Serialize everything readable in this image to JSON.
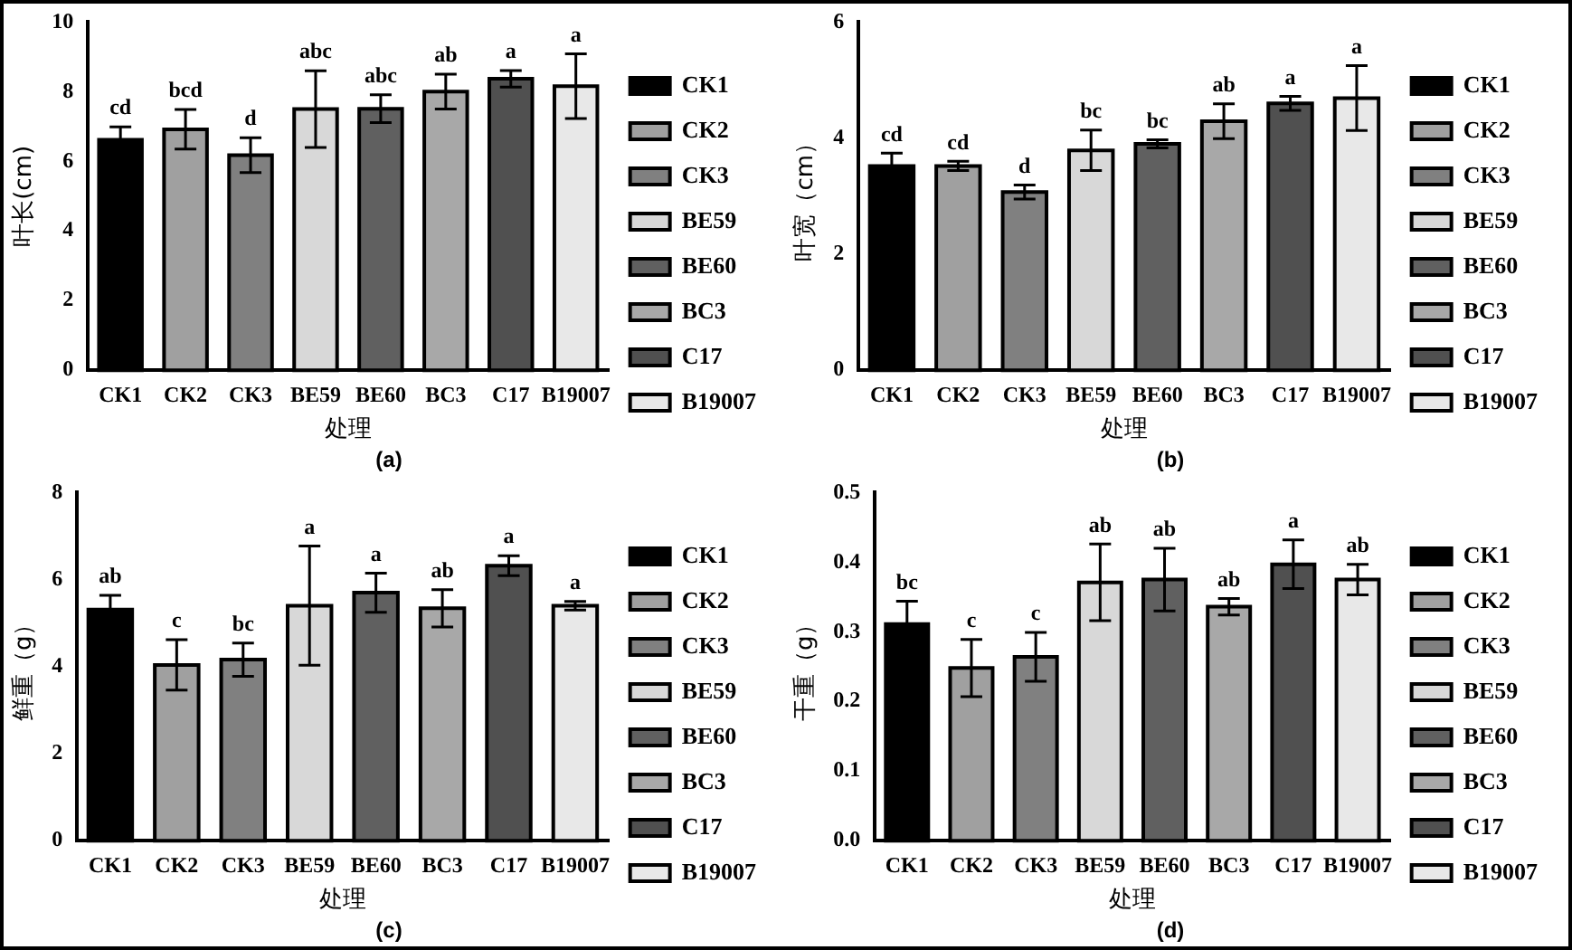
{
  "chart_data": [
    {
      "type": "bar",
      "title": "(a)",
      "xlabel": "处理",
      "ylabel": "叶长(cm)",
      "categories": [
        "CK1",
        "CK2",
        "CK3",
        "BE59",
        "BE60",
        "BC3",
        "C17",
        "B19007"
      ],
      "series": [
        {
          "name": "CK1",
          "color": "#000000",
          "values": [
            6.62,
            null,
            null,
            null,
            null,
            null,
            null,
            null
          ],
          "errors": [
            0.37,
            null,
            null,
            null,
            null,
            null,
            null,
            null
          ],
          "value_labels": [
            "cd",
            null,
            null,
            null,
            null,
            null,
            null,
            null
          ]
        },
        {
          "name": "CK2",
          "color": "#a0a0a0",
          "values": [
            null,
            6.92,
            null,
            null,
            null,
            null,
            null,
            null
          ],
          "errors": [
            null,
            0.57,
            null,
            null,
            null,
            null,
            null,
            null
          ],
          "value_labels": [
            null,
            "bcd",
            null,
            null,
            null,
            null,
            null,
            null
          ]
        },
        {
          "name": "CK3",
          "color": "#808080",
          "values": [
            null,
            null,
            6.18,
            null,
            null,
            null,
            null,
            null
          ],
          "errors": [
            null,
            null,
            0.5,
            null,
            null,
            null,
            null,
            null
          ],
          "value_labels": [
            null,
            null,
            "d",
            null,
            null,
            null,
            null,
            null
          ]
        },
        {
          "name": "BE59",
          "color": "#d8d8d8",
          "values": [
            null,
            null,
            null,
            7.5,
            null,
            null,
            null,
            null
          ],
          "errors": [
            null,
            null,
            null,
            1.1,
            null,
            null,
            null,
            null
          ],
          "value_labels": [
            null,
            null,
            null,
            "abc",
            null,
            null,
            null,
            null
          ]
        },
        {
          "name": "BE60",
          "color": "#606060",
          "values": [
            null,
            null,
            null,
            null,
            7.51,
            null,
            null,
            null
          ],
          "errors": [
            null,
            null,
            null,
            null,
            0.4,
            null,
            null,
            null
          ],
          "value_labels": [
            null,
            null,
            null,
            null,
            "abc",
            null,
            null,
            null
          ]
        },
        {
          "name": "BC3",
          "color": "#a8a8a8",
          "values": [
            null,
            null,
            null,
            null,
            null,
            8.0,
            null,
            null
          ],
          "errors": [
            null,
            null,
            null,
            null,
            null,
            0.5,
            null,
            null
          ],
          "value_labels": [
            null,
            null,
            null,
            null,
            null,
            "ab",
            null,
            null
          ]
        },
        {
          "name": "C17",
          "color": "#505050",
          "values": [
            null,
            null,
            null,
            null,
            null,
            null,
            8.37,
            null
          ],
          "errors": [
            null,
            null,
            null,
            null,
            null,
            null,
            0.24,
            null
          ],
          "value_labels": [
            null,
            null,
            null,
            null,
            null,
            null,
            "a",
            null
          ]
        },
        {
          "name": "B19007",
          "color": "#e8e8e8",
          "values": [
            null,
            null,
            null,
            null,
            null,
            null,
            null,
            8.16
          ],
          "errors": [
            null,
            null,
            null,
            null,
            null,
            null,
            null,
            0.93
          ],
          "value_labels": [
            null,
            null,
            null,
            null,
            null,
            null,
            null,
            "a"
          ]
        }
      ],
      "ylim": [
        0,
        10
      ],
      "yticks": [
        0,
        2,
        4,
        6,
        8,
        10
      ],
      "legend": "right"
    },
    {
      "type": "bar",
      "title": "(b)",
      "xlabel": "处理",
      "ylabel": "叶宽（cm）",
      "categories": [
        "CK1",
        "CK2",
        "CK3",
        "BE59",
        "BE60",
        "BC3",
        "C17",
        "B19007"
      ],
      "series": [
        {
          "name": "CK1",
          "color": "#000000",
          "values": [
            3.52,
            null,
            null,
            null,
            null,
            null,
            null,
            null
          ],
          "errors": [
            0.22,
            null,
            null,
            null,
            null,
            null,
            null,
            null
          ],
          "value_labels": [
            "cd",
            null,
            null,
            null,
            null,
            null,
            null,
            null
          ]
        },
        {
          "name": "CK2",
          "color": "#a0a0a0",
          "values": [
            null,
            3.52,
            null,
            null,
            null,
            null,
            null,
            null
          ],
          "errors": [
            null,
            0.08,
            null,
            null,
            null,
            null,
            null,
            null
          ],
          "value_labels": [
            null,
            "cd",
            null,
            null,
            null,
            null,
            null,
            null
          ]
        },
        {
          "name": "CK3",
          "color": "#808080",
          "values": [
            null,
            null,
            3.07,
            null,
            null,
            null,
            null,
            null
          ],
          "errors": [
            null,
            null,
            0.12,
            null,
            null,
            null,
            null,
            null
          ],
          "value_labels": [
            null,
            null,
            "d",
            null,
            null,
            null,
            null,
            null
          ]
        },
        {
          "name": "BE59",
          "color": "#d8d8d8",
          "values": [
            null,
            null,
            null,
            3.79,
            null,
            null,
            null,
            null
          ],
          "errors": [
            null,
            null,
            null,
            0.35,
            null,
            null,
            null,
            null
          ],
          "value_labels": [
            null,
            null,
            null,
            "bc",
            null,
            null,
            null,
            null
          ]
        },
        {
          "name": "BE60",
          "color": "#606060",
          "values": [
            null,
            null,
            null,
            null,
            3.9,
            null,
            null,
            null
          ],
          "errors": [
            null,
            null,
            null,
            null,
            0.07,
            null,
            null,
            null
          ],
          "value_labels": [
            null,
            null,
            null,
            null,
            "bc",
            null,
            null,
            null
          ]
        },
        {
          "name": "BC3",
          "color": "#a8a8a8",
          "values": [
            null,
            null,
            null,
            null,
            null,
            4.29,
            null,
            null
          ],
          "errors": [
            null,
            null,
            null,
            null,
            null,
            0.3,
            null,
            null
          ],
          "value_labels": [
            null,
            null,
            null,
            null,
            null,
            "ab",
            null,
            null
          ]
        },
        {
          "name": "C17",
          "color": "#505050",
          "values": [
            null,
            null,
            null,
            null,
            null,
            null,
            4.6,
            null
          ],
          "errors": [
            null,
            null,
            null,
            null,
            null,
            null,
            0.12,
            null
          ],
          "value_labels": [
            null,
            null,
            null,
            null,
            null,
            null,
            "a",
            null
          ]
        },
        {
          "name": "B19007",
          "color": "#e8e8e8",
          "values": [
            null,
            null,
            null,
            null,
            null,
            null,
            null,
            4.69
          ],
          "errors": [
            null,
            null,
            null,
            null,
            null,
            null,
            null,
            0.56
          ],
          "value_labels": [
            null,
            null,
            null,
            null,
            null,
            null,
            null,
            "a"
          ]
        }
      ],
      "ylim": [
        0,
        6
      ],
      "yticks": [
        0,
        2,
        4,
        6
      ],
      "legend": "right"
    },
    {
      "type": "bar",
      "title": "(c)",
      "xlabel": "处理",
      "ylabel": "鲜重（g）",
      "categories": [
        "CK1",
        "CK2",
        "CK3",
        "BE59",
        "BE60",
        "BC3",
        "C17",
        "B19007"
      ],
      "series": [
        {
          "name": "CK1",
          "color": "#000000",
          "values": [
            5.31,
            null,
            null,
            null,
            null,
            null,
            null,
            null
          ],
          "errors": [
            0.33,
            null,
            null,
            null,
            null,
            null,
            null,
            null
          ],
          "value_labels": [
            "ab",
            null,
            null,
            null,
            null,
            null,
            null,
            null
          ]
        },
        {
          "name": "CK2",
          "color": "#a0a0a0",
          "values": [
            null,
            4.04,
            null,
            null,
            null,
            null,
            null,
            null
          ],
          "errors": [
            null,
            0.58,
            null,
            null,
            null,
            null,
            null,
            null
          ],
          "value_labels": [
            null,
            "c",
            null,
            null,
            null,
            null,
            null,
            null
          ]
        },
        {
          "name": "CK3",
          "color": "#808080",
          "values": [
            null,
            null,
            4.16,
            null,
            null,
            null,
            null,
            null
          ],
          "errors": [
            null,
            null,
            0.38,
            null,
            null,
            null,
            null,
            null
          ],
          "value_labels": [
            null,
            null,
            "bc",
            null,
            null,
            null,
            null,
            null
          ]
        },
        {
          "name": "BE59",
          "color": "#d8d8d8",
          "values": [
            null,
            null,
            null,
            5.4,
            null,
            null,
            null,
            null
          ],
          "errors": [
            null,
            null,
            null,
            1.37,
            null,
            null,
            null,
            null
          ],
          "value_labels": [
            null,
            null,
            null,
            "a",
            null,
            null,
            null,
            null
          ]
        },
        {
          "name": "BE60",
          "color": "#606060",
          "values": [
            null,
            null,
            null,
            null,
            5.7,
            null,
            null,
            null
          ],
          "errors": [
            null,
            null,
            null,
            null,
            0.45,
            null,
            null,
            null
          ],
          "value_labels": [
            null,
            null,
            null,
            null,
            "a",
            null,
            null,
            null
          ]
        },
        {
          "name": "BC3",
          "color": "#a8a8a8",
          "values": [
            null,
            null,
            null,
            null,
            null,
            5.34,
            null,
            null
          ],
          "errors": [
            null,
            null,
            null,
            null,
            null,
            0.43,
            null,
            null
          ],
          "value_labels": [
            null,
            null,
            null,
            null,
            null,
            "ab",
            null,
            null
          ]
        },
        {
          "name": "C17",
          "color": "#505050",
          "values": [
            null,
            null,
            null,
            null,
            null,
            null,
            6.32,
            null
          ],
          "errors": [
            null,
            null,
            null,
            null,
            null,
            null,
            0.23,
            null
          ],
          "value_labels": [
            null,
            null,
            null,
            null,
            null,
            null,
            "a",
            null
          ]
        },
        {
          "name": "B19007",
          "color": "#e8e8e8",
          "values": [
            null,
            null,
            null,
            null,
            null,
            null,
            null,
            5.4
          ],
          "errors": [
            null,
            null,
            null,
            null,
            null,
            null,
            null,
            0.1
          ],
          "value_labels": [
            null,
            null,
            null,
            null,
            null,
            null,
            null,
            "a"
          ]
        }
      ],
      "ylim": [
        0,
        8
      ],
      "yticks": [
        0,
        2,
        4,
        6,
        8
      ],
      "legend": "right"
    },
    {
      "type": "bar",
      "title": "(d)",
      "xlabel": "处理",
      "ylabel": "干重（g）",
      "categories": [
        "CK1",
        "CK2",
        "CK3",
        "BE59",
        "BE60",
        "BC3",
        "C17",
        "B19007"
      ],
      "series": [
        {
          "name": "CK1",
          "color": "#000000",
          "values": [
            0.311,
            null,
            null,
            null,
            null,
            null,
            null,
            null
          ],
          "errors": [
            0.033,
            null,
            null,
            null,
            null,
            null,
            null,
            null
          ],
          "value_labels": [
            "bc",
            null,
            null,
            null,
            null,
            null,
            null,
            null
          ]
        },
        {
          "name": "CK2",
          "color": "#a0a0a0",
          "values": [
            null,
            0.248,
            null,
            null,
            null,
            null,
            null,
            null
          ],
          "errors": [
            null,
            0.041,
            null,
            null,
            null,
            null,
            null,
            null
          ],
          "value_labels": [
            null,
            "c",
            null,
            null,
            null,
            null,
            null,
            null
          ]
        },
        {
          "name": "CK3",
          "color": "#808080",
          "values": [
            null,
            null,
            0.264,
            null,
            null,
            null,
            null,
            null
          ],
          "errors": [
            null,
            null,
            0.035,
            null,
            null,
            null,
            null,
            null
          ],
          "value_labels": [
            null,
            null,
            "c",
            null,
            null,
            null,
            null,
            null
          ]
        },
        {
          "name": "BE59",
          "color": "#d8d8d8",
          "values": [
            null,
            null,
            null,
            0.371,
            null,
            null,
            null,
            null
          ],
          "errors": [
            null,
            null,
            null,
            0.055,
            null,
            null,
            null,
            null
          ],
          "value_labels": [
            null,
            null,
            null,
            "ab",
            null,
            null,
            null,
            null
          ]
        },
        {
          "name": "BE60",
          "color": "#606060",
          "values": [
            null,
            null,
            null,
            null,
            0.375,
            null,
            null,
            null
          ],
          "errors": [
            null,
            null,
            null,
            null,
            0.045,
            null,
            null,
            null
          ],
          "value_labels": [
            null,
            null,
            null,
            null,
            "ab",
            null,
            null,
            null
          ]
        },
        {
          "name": "BC3",
          "color": "#a8a8a8",
          "values": [
            null,
            null,
            null,
            null,
            null,
            0.336,
            null,
            null
          ],
          "errors": [
            null,
            null,
            null,
            null,
            null,
            0.012,
            null,
            null
          ],
          "value_labels": [
            null,
            null,
            null,
            null,
            null,
            "ab",
            null,
            null
          ]
        },
        {
          "name": "C17",
          "color": "#505050",
          "values": [
            null,
            null,
            null,
            null,
            null,
            null,
            0.397,
            null
          ],
          "errors": [
            null,
            null,
            null,
            null,
            null,
            null,
            0.035,
            null
          ],
          "value_labels": [
            null,
            null,
            null,
            null,
            null,
            null,
            "a",
            null
          ]
        },
        {
          "name": "B19007",
          "color": "#e8e8e8",
          "values": [
            null,
            null,
            null,
            null,
            null,
            null,
            null,
            0.375
          ],
          "errors": [
            null,
            null,
            null,
            null,
            null,
            null,
            null,
            0.022
          ],
          "value_labels": [
            null,
            null,
            null,
            null,
            null,
            null,
            null,
            "ab"
          ]
        }
      ],
      "ylim": [
        0,
        0.5
      ],
      "yticks": [
        {
          "value": 0,
          "label": "0.0"
        },
        0.1,
        0.2,
        0.3,
        0.4,
        0.5
      ],
      "legend": "right"
    }
  ]
}
